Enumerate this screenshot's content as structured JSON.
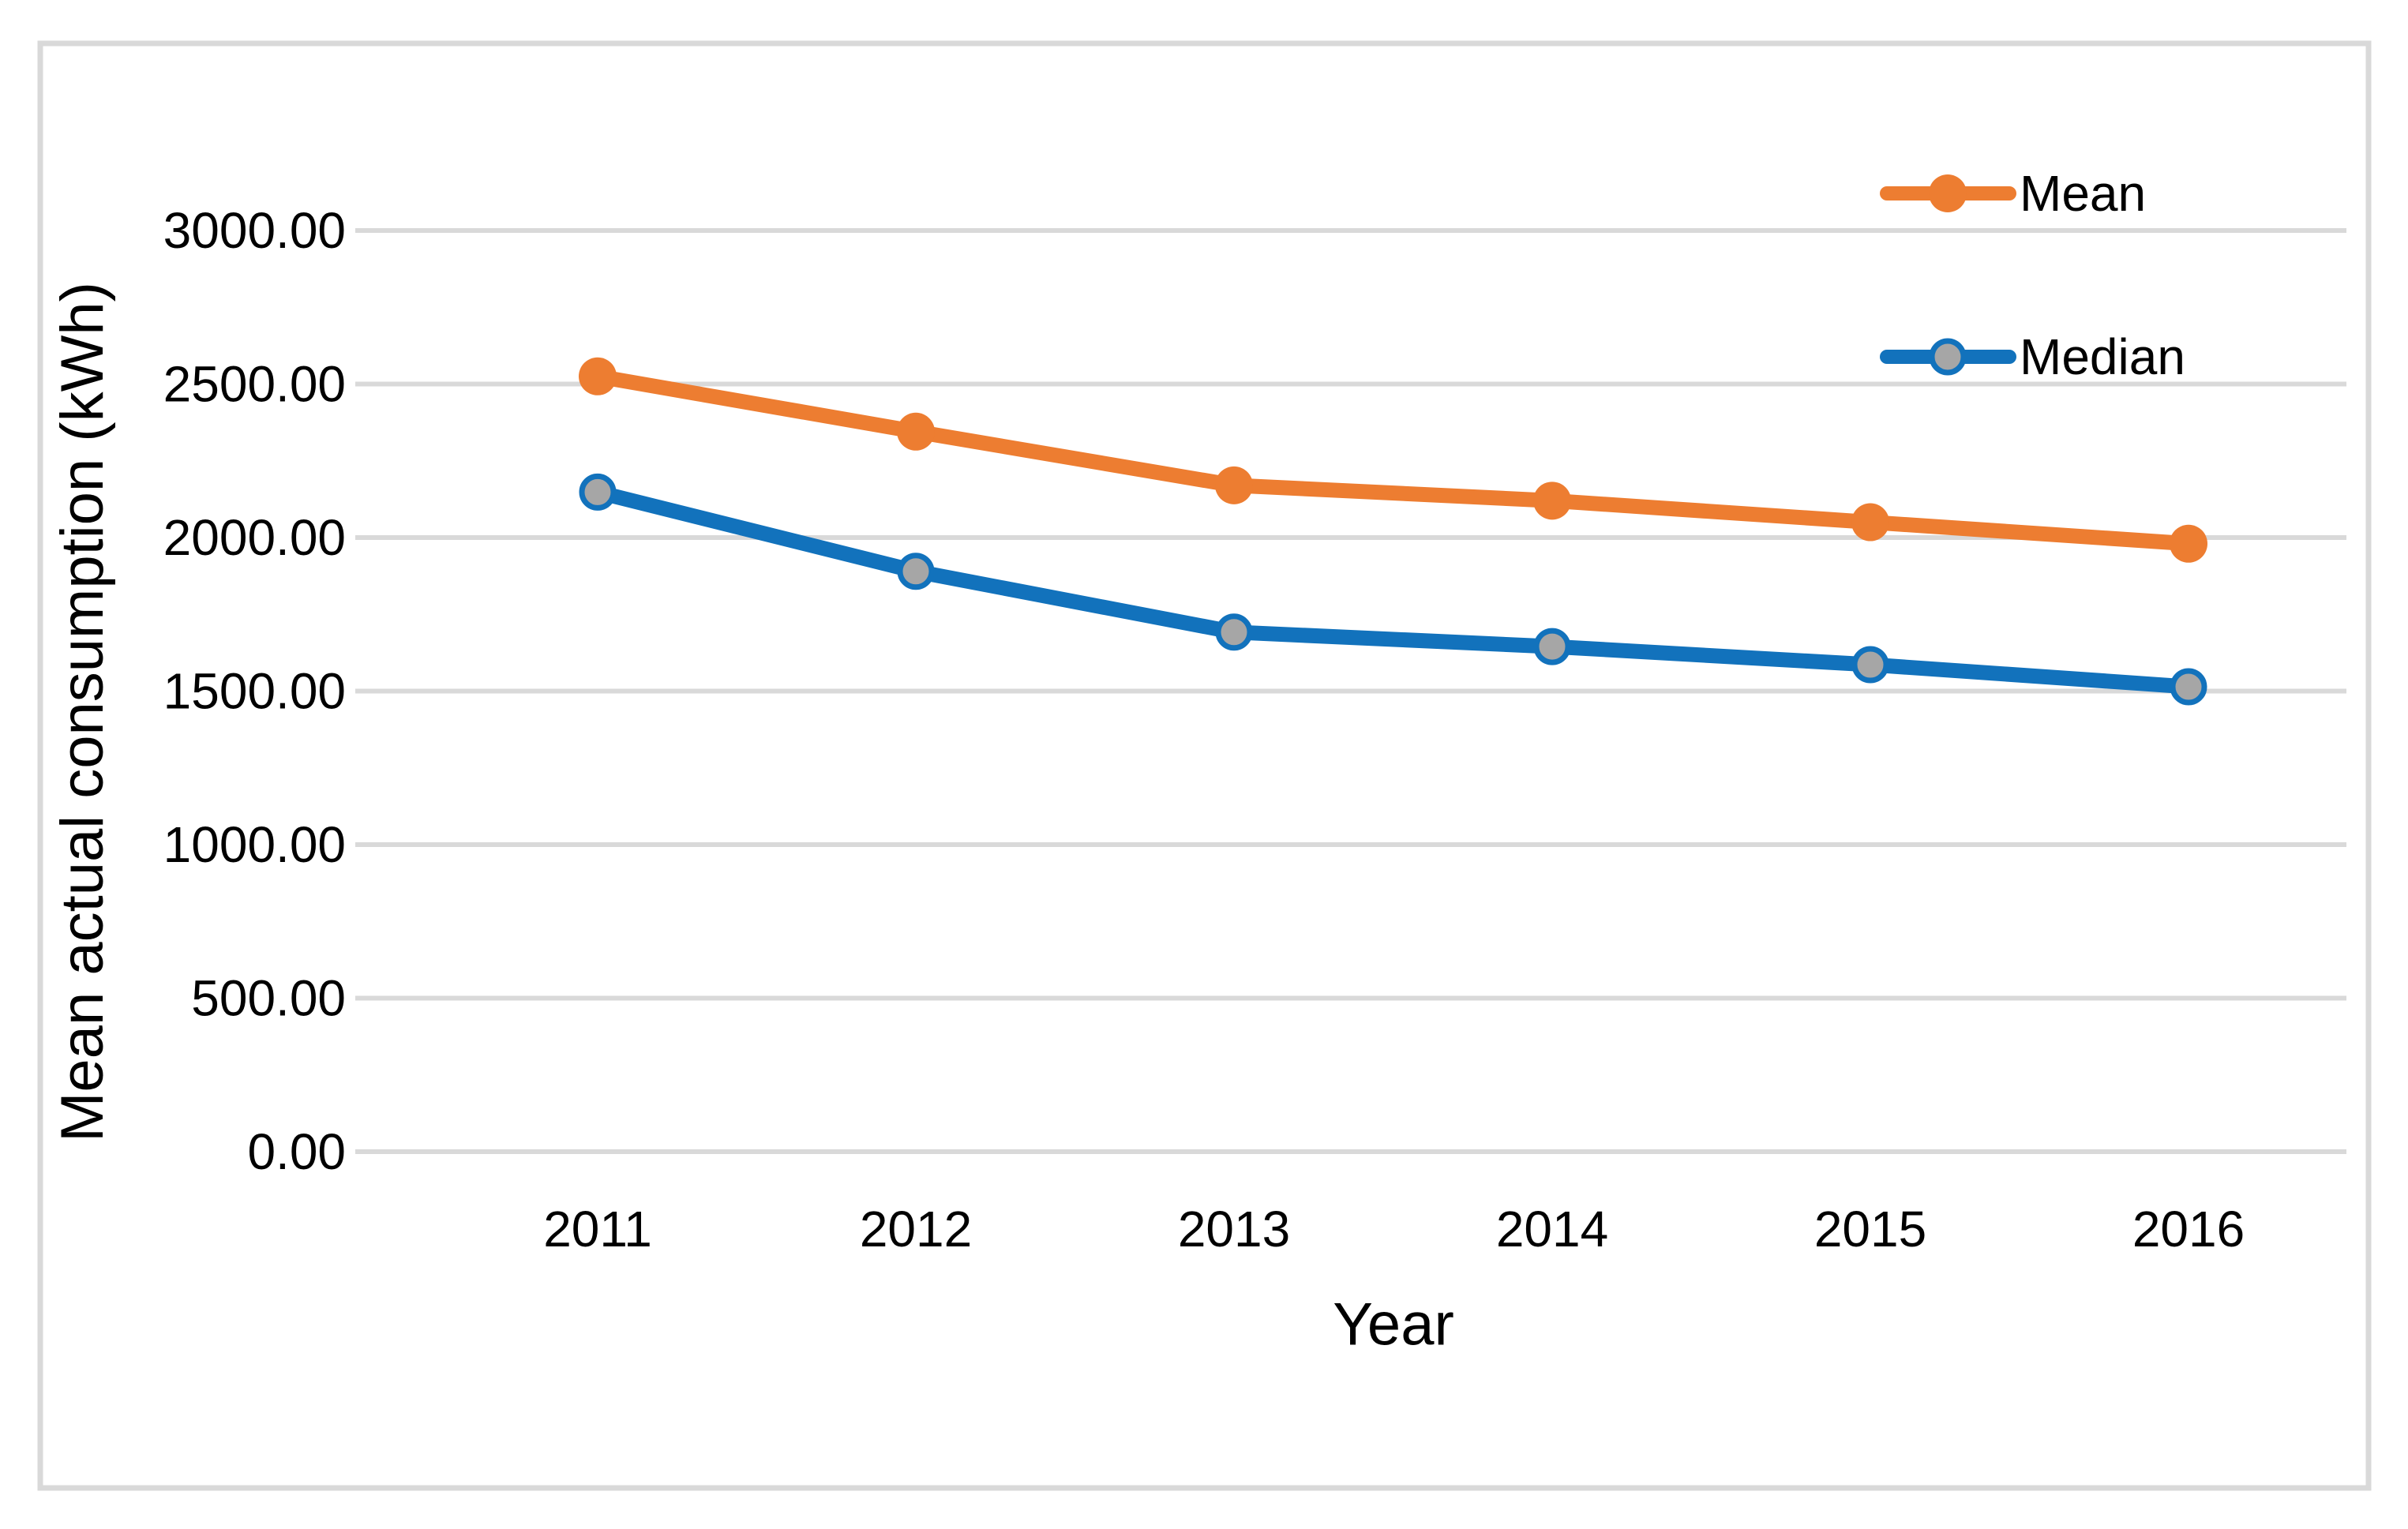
{
  "chart_data": {
    "type": "line",
    "title": "",
    "xlabel": "Year",
    "ylabel": "Mean actual consumption (kWh)",
    "categories": [
      "2011",
      "2012",
      "2013",
      "2014",
      "2015",
      "2016"
    ],
    "series": [
      {
        "name": "Mean",
        "values": [
          2525,
          2345,
          2170,
          2120,
          2050,
          1980
        ],
        "color": "#ED7D31",
        "marker": {
          "fill": "#ED7D31",
          "stroke": "#ED7D31"
        }
      },
      {
        "name": "Median",
        "values": [
          2148,
          1890,
          1692,
          1645,
          1586,
          1514
        ],
        "color": "#1272BC",
        "marker": {
          "fill": "#A6A6A6",
          "stroke": "#1272BC"
        }
      }
    ],
    "ylim": [
      0,
      3000
    ],
    "ytick_step": 500,
    "ytick_decimals": 2,
    "ytick_labels": [
      "0.00",
      "500.00",
      "1000.00",
      "1500.00",
      "2000.00",
      "2500.00",
      "3000.00"
    ],
    "grid": "horizontal",
    "legend_position": "top-right",
    "colors": {
      "gridline": "#D9D9D9",
      "chart_border": "#D9D9D9",
      "text": "#000000",
      "background": "#FFFFFF"
    }
  }
}
